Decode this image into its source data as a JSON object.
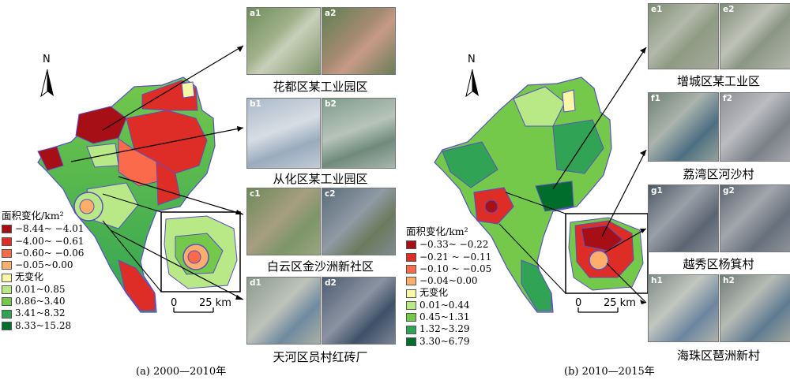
{
  "panel_a": {
    "figure_label": "(a) 2000—2010年",
    "north": "N",
    "legend_title": "面积变化/km²",
    "legend": [
      {
        "label": "−8.44~ −4.01",
        "color": "#a50f15"
      },
      {
        "label": "−4.00~ −0.61",
        "color": "#de2d26"
      },
      {
        "label": "−0.60~ −0.06",
        "color": "#fb6a4a"
      },
      {
        "label": "−0.05~0.00",
        "color": "#fdae6b"
      },
      {
        "label": "无变化",
        "color": "#f7f7a8"
      },
      {
        "label": "0.01~0.85",
        "color": "#b8e986"
      },
      {
        "label": "0.86~3.40",
        "color": "#74c84a"
      },
      {
        "label": "3.41~8.32",
        "color": "#31a354"
      },
      {
        "label": "8.33~15.28",
        "color": "#006d2c"
      }
    ],
    "scale_zero": "0",
    "scale_label": "25 km",
    "sites": [
      {
        "caption": "花都区某工业园区",
        "tags": [
          "a1",
          "a2"
        ]
      },
      {
        "caption": "从化区某工业园区",
        "tags": [
          "b1",
          "b2"
        ]
      },
      {
        "caption": "白云区金沙洲新社区",
        "tags": [
          "c1",
          "c2"
        ]
      },
      {
        "caption": "天河区员村红砖厂",
        "tags": [
          "d1",
          "d2"
        ]
      }
    ]
  },
  "panel_b": {
    "figure_label": "(b) 2010—2015年",
    "north": "N",
    "legend_title": "面积变化/km²",
    "legend": [
      {
        "label": "−0.33~ −0.22",
        "color": "#a50f15"
      },
      {
        "label": "−0.21 ~ −0.11",
        "color": "#de2d26"
      },
      {
        "label": "−0.10 ~ −0.05",
        "color": "#fb6a4a"
      },
      {
        "label": "−0.04~0.00",
        "color": "#fdae6b"
      },
      {
        "label": "无变化",
        "color": "#f7f7a8"
      },
      {
        "label": "0.01~0.44",
        "color": "#b8e986"
      },
      {
        "label": "0.45~1.31",
        "color": "#74c84a"
      },
      {
        "label": "1.32~3.29",
        "color": "#31a354"
      },
      {
        "label": "3.30~6.79",
        "color": "#006d2c"
      }
    ],
    "scale_zero": "0",
    "scale_label": "25 km",
    "sites": [
      {
        "caption": "增城区某工业区",
        "tags": [
          "e1",
          "e2"
        ]
      },
      {
        "caption": "荔湾区河沙村",
        "tags": [
          "f1",
          "f2"
        ]
      },
      {
        "caption": "越秀区杨箕村",
        "tags": [
          "g1",
          "g2"
        ]
      },
      {
        "caption": "海珠区琶洲新村",
        "tags": [
          "h1",
          "h2"
        ]
      }
    ]
  }
}
